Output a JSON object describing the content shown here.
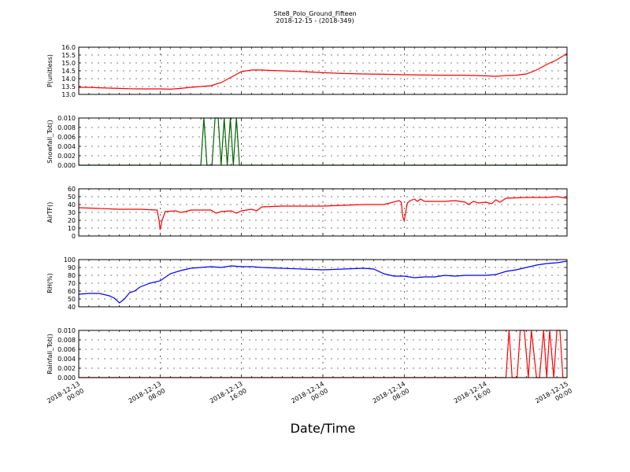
{
  "figure": {
    "title": "Site8_Polo_Ground_Fifteen",
    "subtitle": "2018-12-15 - (2018-349)",
    "xlabel": "Date/Time",
    "x_ticks": [
      {
        "lines": [
          "2018-12-13",
          "00:00"
        ],
        "t": 0
      },
      {
        "lines": [
          "2018-12-13",
          "08:00"
        ],
        "t": 8
      },
      {
        "lines": [
          "2018-12-13",
          "16:00"
        ],
        "t": 16
      },
      {
        "lines": [
          "2018-12-14",
          "00:00"
        ],
        "t": 24
      },
      {
        "lines": [
          "2018-12-14",
          "08:00"
        ],
        "t": 32
      },
      {
        "lines": [
          "2018-12-14",
          "16:00"
        ],
        "t": 40
      },
      {
        "lines": [
          "2018-12-15",
          "00:00"
        ],
        "t": 48
      }
    ],
    "xlim": [
      0,
      48
    ]
  },
  "chart_data": [
    {
      "type": "line",
      "ylabel": "P(unitless)",
      "ylim": [
        13.0,
        16.0
      ],
      "yticks": [
        "13.0",
        "13.5",
        "14.0",
        "14.5",
        "15.0",
        "15.5",
        "16.0"
      ],
      "color": "#ff0000",
      "grid": true,
      "series": [
        {
          "x": [
            0,
            1,
            2,
            3,
            4,
            5,
            6,
            7,
            8,
            9,
            10,
            11,
            12,
            13,
            14,
            15,
            16,
            17,
            18,
            19,
            20,
            22,
            24,
            26,
            28,
            30,
            32,
            34,
            36,
            38,
            40,
            41,
            42,
            43,
            44,
            45,
            46,
            47,
            48
          ],
          "values": [
            13.45,
            13.45,
            13.42,
            13.4,
            13.38,
            13.36,
            13.35,
            13.35,
            13.35,
            13.33,
            13.38,
            13.45,
            13.5,
            13.55,
            13.75,
            14.1,
            14.45,
            14.55,
            14.55,
            14.52,
            14.5,
            14.45,
            14.38,
            14.33,
            14.3,
            14.28,
            14.25,
            14.23,
            14.22,
            14.22,
            14.18,
            14.15,
            14.2,
            14.22,
            14.3,
            14.55,
            14.9,
            15.2,
            15.6
          ]
        }
      ]
    },
    {
      "type": "line",
      "ylabel": "Snowfall_Tot()",
      "ylim": [
        0.0,
        0.01
      ],
      "yticks": [
        "0.000",
        "0.002",
        "0.004",
        "0.006",
        "0.008",
        "0.010"
      ],
      "color": "#006400",
      "grid": true,
      "series": [
        {
          "x": [
            0,
            12,
            12.3,
            12.6,
            13.1,
            13.4,
            13.7,
            14.0,
            14.3,
            14.6,
            14.9,
            15.2,
            15.5,
            15.8,
            48
          ],
          "values": [
            0,
            0,
            0.01,
            0,
            0,
            0.01,
            0.01,
            0,
            0.01,
            0,
            0.01,
            0,
            0.01,
            0,
            0
          ]
        }
      ]
    },
    {
      "type": "line",
      "ylabel": "AirTF()",
      "ylim": [
        0,
        60
      ],
      "yticks": [
        "0",
        "10",
        "20",
        "30",
        "40",
        "50",
        "60"
      ],
      "color": "#ff0000",
      "grid": true,
      "series": [
        {
          "x": [
            0,
            2,
            4,
            6,
            7.7,
            7.9,
            8.0,
            8.2,
            8.5,
            9.5,
            10,
            10.5,
            11,
            12,
            13,
            13.5,
            14,
            15,
            15.5,
            16,
            17,
            17.5,
            18,
            20,
            22,
            24,
            26,
            28,
            30,
            31.5,
            31.7,
            31.85,
            32.0,
            32.3,
            32.6,
            33,
            33.3,
            33.6,
            34,
            36,
            37,
            38,
            38.3,
            38.8,
            39.3,
            40,
            40.6,
            41,
            41.4,
            42,
            44,
            46,
            47,
            48
          ],
          "values": [
            36,
            35,
            34,
            34,
            33,
            20,
            8,
            20,
            31,
            32,
            30,
            31,
            33,
            33,
            33,
            29,
            31,
            32,
            29,
            32,
            34,
            32,
            37,
            38,
            38,
            38,
            39,
            40,
            40,
            45,
            43,
            25,
            19,
            42,
            45,
            47,
            44,
            47,
            44,
            44,
            45,
            43,
            40,
            44,
            42,
            43,
            41,
            46,
            43,
            48,
            49,
            49,
            50,
            48
          ]
        }
      ]
    },
    {
      "type": "line",
      "ylabel": "RH(%)",
      "ylim": [
        40,
        100
      ],
      "yticks": [
        "40",
        "50",
        "60",
        "70",
        "80",
        "90",
        "100"
      ],
      "color": "#0000ff",
      "grid": true,
      "series": [
        {
          "x": [
            0,
            1,
            2,
            3,
            3.5,
            4,
            4.5,
            5,
            5.5,
            6,
            7,
            8,
            9,
            10,
            11,
            12,
            13,
            14,
            15,
            16,
            17,
            18,
            20,
            22,
            24,
            26,
            28,
            29,
            30,
            31,
            32,
            33,
            34,
            35,
            36,
            37,
            38,
            39,
            40,
            41,
            42,
            43,
            44,
            45,
            46,
            47,
            48
          ],
          "values": [
            56,
            57,
            57,
            54,
            51,
            45,
            50,
            58,
            60,
            65,
            70,
            73,
            82,
            86,
            89,
            90,
            91,
            90,
            92,
            91,
            91,
            90,
            89,
            88,
            87,
            88,
            89,
            88,
            82,
            79,
            79,
            77,
            78,
            78,
            80,
            79,
            80,
            80,
            80,
            81,
            85,
            87,
            90,
            93,
            95,
            96,
            98
          ]
        }
      ]
    },
    {
      "type": "line",
      "ylabel": "Rainfall_Tot()",
      "ylim": [
        0.0,
        0.01
      ],
      "yticks": [
        "0.000",
        "0.002",
        "0.004",
        "0.006",
        "0.008",
        "0.010"
      ],
      "color": "#ff0000",
      "grid": true,
      "series": [
        {
          "x": [
            0,
            42.0,
            42.3,
            42.6,
            43.1,
            43.4,
            43.8,
            44.2,
            44.5,
            45.0,
            45.3,
            45.7,
            46.0,
            46.3,
            46.7,
            47.0,
            47.3,
            47.6,
            48
          ],
          "values": [
            0,
            0,
            0.01,
            0,
            0,
            0.01,
            0.01,
            0,
            0.01,
            0,
            0,
            0.01,
            0,
            0.01,
            0,
            0.01,
            0.01,
            0,
            0
          ]
        }
      ]
    }
  ]
}
